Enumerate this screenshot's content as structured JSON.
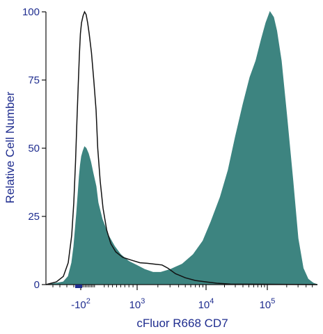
{
  "chart_data": {
    "type": "area",
    "xlabel": "cFluor R668 CD7",
    "ylabel": "Relative Cell Number",
    "x_scale": "biexponential",
    "y_ticks": [
      "0",
      "25",
      "50",
      "75",
      "100"
    ],
    "y_tick_values": [
      0,
      25,
      50,
      75,
      100
    ],
    "x_ticks": [
      {
        "label": "-10",
        "sup": "2",
        "value": -100
      },
      {
        "label": "10",
        "sup": "3",
        "value": 1000
      },
      {
        "label": "10",
        "sup": "4",
        "value": 10000
      },
      {
        "label": "10",
        "sup": "5",
        "value": 100000
      }
    ],
    "ylim": [
      0,
      100
    ],
    "xlim": [
      -600,
      600000
    ],
    "series": [
      {
        "style": "filled",
        "color": "#3d8480",
        "points": [
          [
            -600,
            0
          ],
          [
            -450,
            0.5
          ],
          [
            -350,
            1
          ],
          [
            -280,
            3
          ],
          [
            -230,
            8
          ],
          [
            -200,
            14
          ],
          [
            -180,
            20
          ],
          [
            -160,
            26
          ],
          [
            -140,
            33
          ],
          [
            -120,
            40
          ],
          [
            -105,
            44
          ],
          [
            -95,
            47
          ],
          [
            -85,
            49
          ],
          [
            -75,
            50.5
          ],
          [
            -65,
            50
          ],
          [
            -50,
            48
          ],
          [
            -35,
            45
          ],
          [
            -20,
            41
          ],
          [
            0,
            36
          ],
          [
            50,
            30
          ],
          [
            150,
            24
          ],
          [
            300,
            18
          ],
          [
            450,
            14
          ],
          [
            600,
            11
          ],
          [
            800,
            8.5
          ],
          [
            1000,
            7
          ],
          [
            1300,
            5.5
          ],
          [
            1700,
            4.5
          ],
          [
            2200,
            4.5
          ],
          [
            3000,
            5.5
          ],
          [
            4500,
            7.5
          ],
          [
            6500,
            11
          ],
          [
            9000,
            16
          ],
          [
            12000,
            23
          ],
          [
            17000,
            32
          ],
          [
            23000,
            42
          ],
          [
            30000,
            54
          ],
          [
            40000,
            66
          ],
          [
            52000,
            76
          ],
          [
            65000,
            82
          ],
          [
            80000,
            90
          ],
          [
            95000,
            96
          ],
          [
            110000,
            100
          ],
          [
            125000,
            98
          ],
          [
            140000,
            93
          ],
          [
            165000,
            82
          ],
          [
            200000,
            62
          ],
          [
            250000,
            38
          ],
          [
            300000,
            17
          ],
          [
            360000,
            6
          ],
          [
            430000,
            2
          ],
          [
            520000,
            0.5
          ],
          [
            600000,
            0
          ]
        ]
      },
      {
        "style": "outline",
        "color": "#111111",
        "points": [
          [
            -600,
            0
          ],
          [
            -450,
            1
          ],
          [
            -350,
            3
          ],
          [
            -280,
            8
          ],
          [
            -230,
            18
          ],
          [
            -200,
            30
          ],
          [
            -175,
            45
          ],
          [
            -155,
            60
          ],
          [
            -135,
            74
          ],
          [
            -120,
            84
          ],
          [
            -105,
            92
          ],
          [
            -95,
            96
          ],
          [
            -85,
            98.5
          ],
          [
            -75,
            100
          ],
          [
            -65,
            99
          ],
          [
            -55,
            96
          ],
          [
            -45,
            92
          ],
          [
            -30,
            85
          ],
          [
            -15,
            75
          ],
          [
            0,
            64
          ],
          [
            40,
            50
          ],
          [
            100,
            38
          ],
          [
            170,
            28
          ],
          [
            260,
            20
          ],
          [
            360,
            15
          ],
          [
            480,
            12
          ],
          [
            650,
            10
          ],
          [
            850,
            9
          ],
          [
            1100,
            8
          ],
          [
            1400,
            7.8
          ],
          [
            1800,
            7.5
          ],
          [
            2300,
            7.2
          ],
          [
            2800,
            6
          ],
          [
            3600,
            4
          ],
          [
            5000,
            2.5
          ],
          [
            7000,
            1.5
          ],
          [
            10000,
            1
          ],
          [
            15000,
            0.5
          ],
          [
            25000,
            0.2
          ],
          [
            600000,
            0
          ]
        ]
      }
    ],
    "grid": false,
    "legend": "none"
  }
}
